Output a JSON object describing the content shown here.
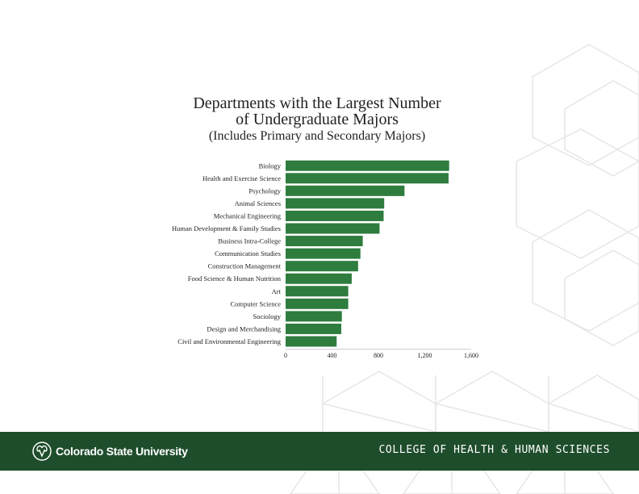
{
  "chart_data": {
    "type": "bar",
    "orientation": "horizontal",
    "title": "Departments with the Largest Number of Undergraduate Majors",
    "title_lines": [
      "Departments with the Largest Number",
      "of Undergraduate Majors"
    ],
    "subtitle": "(Includes Primary and Secondary Majors)",
    "categories": [
      "Biology",
      "Health and Exercise Science",
      "Psychology",
      "Animal Sciences",
      "Mechanical Engineering",
      "Human Development & Family Studies",
      "Business Intra-College",
      "Communication Studies",
      "Construction Management",
      "Food Science & Human Nutrition",
      "Art",
      "Computer Science",
      "Sociology",
      "Design and Merchandising",
      "Civil and Environmental Engineering"
    ],
    "values": [
      1410,
      1405,
      1025,
      850,
      845,
      810,
      665,
      645,
      625,
      570,
      540,
      540,
      485,
      480,
      440
    ],
    "xlim": [
      0,
      1600
    ],
    "xticks": [
      "0",
      "400",
      "800",
      "1,200",
      "1,600"
    ],
    "xtick_values": [
      0,
      400,
      800,
      1200,
      1600
    ],
    "xlabel": "",
    "ylabel": "",
    "bar_color": "#2e7d3e",
    "grid": false,
    "legend": "none"
  },
  "footer": {
    "university": "Colorado State University",
    "college": "COLLEGE OF HEALTH & HUMAN SCIENCES",
    "background_color": "#1e4d2b"
  }
}
